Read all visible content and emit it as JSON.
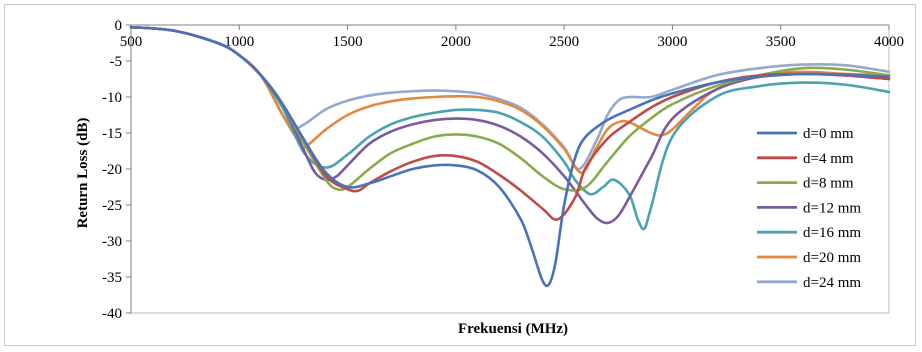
{
  "chart_data": {
    "type": "line",
    "title": "",
    "xlabel": "Frekuensi (MHz)",
    "ylabel": "Return Loss (dB)",
    "xlim": [
      500,
      4000
    ],
    "ylim": [
      -40,
      0
    ],
    "xticks": [
      500,
      1000,
      1500,
      2000,
      2500,
      3000,
      3500,
      4000
    ],
    "yticks": [
      0,
      -5,
      -10,
      -15,
      -20,
      -25,
      -30,
      -35,
      -40
    ],
    "grid": false,
    "legend_position": "right",
    "series": [
      {
        "name": "d=0 mm",
        "color": "#4a72b8",
        "x": [
          500,
          700,
          900,
          1000,
          1100,
          1200,
          1300,
          1400,
          1500,
          1600,
          1700,
          1800,
          1900,
          2000,
          2100,
          2200,
          2300,
          2350,
          2400,
          2430,
          2460,
          2500,
          2550,
          2600,
          2700,
          2800,
          2900,
          3000,
          3200,
          3400,
          3600,
          3800,
          4000
        ],
        "y": [
          -0.3,
          -0.8,
          -2.5,
          -4.2,
          -7,
          -11,
          -16,
          -20.5,
          -22.5,
          -22,
          -21,
          -20,
          -19.5,
          -19.5,
          -20.2,
          -22.5,
          -27,
          -31,
          -35.5,
          -36,
          -33,
          -25,
          -18.5,
          -15.5,
          -13.2,
          -11.8,
          -10.5,
          -9.5,
          -8,
          -7.2,
          -6.8,
          -6.9,
          -7.2
        ]
      },
      {
        "name": "d=4 mm",
        "color": "#be4b48",
        "x": [
          500,
          700,
          900,
          1000,
          1100,
          1200,
          1300,
          1400,
          1500,
          1550,
          1600,
          1700,
          1800,
          1900,
          2000,
          2100,
          2200,
          2300,
          2400,
          2470,
          2550,
          2600,
          2700,
          2800,
          2900,
          3000,
          3200,
          3400,
          3600,
          3800,
          4000
        ],
        "y": [
          -0.3,
          -0.8,
          -2.5,
          -4.2,
          -7,
          -11,
          -16,
          -21,
          -22.8,
          -23,
          -22,
          -20.3,
          -19,
          -18.2,
          -18.2,
          -19,
          -20.8,
          -23,
          -25.5,
          -27,
          -24,
          -19.8,
          -15.8,
          -13.5,
          -11.5,
          -10,
          -8,
          -7,
          -6.8,
          -7,
          -7.5
        ]
      },
      {
        "name": "d=8 mm",
        "color": "#8aab4b",
        "x": [
          500,
          700,
          900,
          1000,
          1100,
          1200,
          1300,
          1400,
          1450,
          1500,
          1600,
          1700,
          1800,
          1900,
          2000,
          2100,
          2200,
          2300,
          2400,
          2500,
          2600,
          2700,
          2800,
          2900,
          3000,
          3200,
          3400,
          3600,
          3800,
          4000
        ],
        "y": [
          -0.3,
          -0.8,
          -2.5,
          -4.2,
          -7,
          -11,
          -16.5,
          -21.5,
          -22.8,
          -22.5,
          -20,
          -17.8,
          -16.5,
          -15.5,
          -15.2,
          -15.5,
          -16.5,
          -18.5,
          -21,
          -22.8,
          -22.5,
          -19,
          -15.5,
          -13,
          -11,
          -8.5,
          -7,
          -6,
          -6.2,
          -7
        ]
      },
      {
        "name": "d=12 mm",
        "color": "#7a5ba0",
        "x": [
          500,
          700,
          900,
          1000,
          1100,
          1200,
          1300,
          1350,
          1400,
          1450,
          1500,
          1600,
          1700,
          1800,
          1900,
          2000,
          2100,
          2200,
          2300,
          2400,
          2500,
          2600,
          2650,
          2700,
          2750,
          2800,
          2900,
          3000,
          3200,
          3400,
          3600,
          3800,
          4000
        ],
        "y": [
          -0.3,
          -0.8,
          -2.5,
          -4.2,
          -7,
          -11,
          -17.5,
          -20.5,
          -21.5,
          -21,
          -19.5,
          -16.5,
          -14.8,
          -13.8,
          -13.2,
          -13,
          -13.2,
          -14,
          -15.5,
          -17.8,
          -21,
          -25,
          -26.8,
          -27.5,
          -26.5,
          -24,
          -18.5,
          -13,
          -9,
          -7.2,
          -6.8,
          -7,
          -7.5
        ]
      },
      {
        "name": "d=16 mm",
        "color": "#4aa2b2",
        "x": [
          500,
          700,
          900,
          1000,
          1100,
          1200,
          1300,
          1400,
          1500,
          1600,
          1700,
          1800,
          1900,
          2000,
          2100,
          2200,
          2300,
          2400,
          2500,
          2550,
          2620,
          2680,
          2730,
          2800,
          2840,
          2870,
          2900,
          3000,
          3200,
          3400,
          3600,
          3800,
          4000
        ],
        "y": [
          -0.3,
          -0.8,
          -2.5,
          -4.2,
          -7,
          -11.5,
          -17.8,
          -19.8,
          -18,
          -15.5,
          -13.8,
          -12.8,
          -12.2,
          -11.8,
          -11.8,
          -12.2,
          -13.5,
          -15.5,
          -19,
          -21.5,
          -23.5,
          -22.5,
          -21.5,
          -23.5,
          -27,
          -28.3,
          -25.5,
          -15.5,
          -10,
          -8.5,
          -8,
          -8.3,
          -9.3
        ]
      },
      {
        "name": "d=20 mm",
        "color": "#e3893e",
        "x": [
          500,
          700,
          900,
          1000,
          1100,
          1200,
          1270,
          1300,
          1400,
          1500,
          1600,
          1700,
          1800,
          1900,
          2000,
          2100,
          2200,
          2300,
          2400,
          2500,
          2580,
          2650,
          2700,
          2750,
          2800,
          2900,
          2950,
          3000,
          3100,
          3200,
          3400,
          3600,
          3800,
          4000
        ],
        "y": [
          -0.3,
          -0.8,
          -2.5,
          -4.2,
          -7,
          -12.5,
          -16,
          -17,
          -14.5,
          -12.5,
          -11.3,
          -10.6,
          -10.2,
          -10,
          -9.9,
          -10,
          -10.6,
          -11.8,
          -14,
          -17.2,
          -20.5,
          -17,
          -14.5,
          -13.5,
          -13.5,
          -15,
          -15.3,
          -14.5,
          -11.5,
          -9,
          -7,
          -6.5,
          -6.8,
          -7
        ]
      },
      {
        "name": "d=24 mm",
        "color": "#93a9d0",
        "x": [
          500,
          700,
          900,
          1000,
          1100,
          1200,
          1250,
          1300,
          1400,
          1500,
          1600,
          1700,
          1800,
          1900,
          2000,
          2100,
          2200,
          2300,
          2400,
          2500,
          2570,
          2650,
          2700,
          2750,
          2800,
          2900,
          3000,
          3200,
          3400,
          3600,
          3800,
          4000
        ],
        "y": [
          -0.3,
          -0.8,
          -2.5,
          -4.2,
          -7,
          -12.5,
          -14.3,
          -13.8,
          -11.7,
          -10.5,
          -9.8,
          -9.4,
          -9.2,
          -9.1,
          -9.2,
          -9.5,
          -10.3,
          -11.5,
          -13.8,
          -17,
          -20,
          -16,
          -12.5,
          -10.5,
          -10,
          -10,
          -9,
          -7,
          -6,
          -5.5,
          -5.6,
          -6.5
        ]
      }
    ]
  }
}
